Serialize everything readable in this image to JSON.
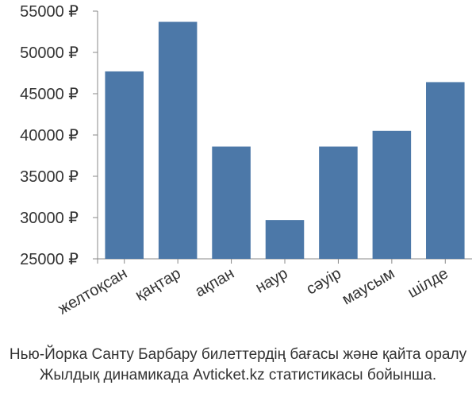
{
  "chart_data": {
    "type": "bar",
    "categories": [
      "желтоқсан",
      "қаңтар",
      "ақпан",
      "наур",
      "сәуір",
      "маусым",
      "шілде"
    ],
    "values": [
      47700,
      53700,
      38600,
      29700,
      38600,
      40500,
      46400
    ],
    "ylim": [
      25000,
      55000
    ],
    "yticks": [
      25000,
      30000,
      35000,
      40000,
      45000,
      50000,
      55000
    ],
    "ytick_labels": [
      "25000 ₽",
      "30000 ₽",
      "35000 ₽",
      "40000 ₽",
      "45000 ₽",
      "50000 ₽",
      "55000 ₽"
    ],
    "bar_color": "#4c78a8",
    "grid": false
  },
  "caption": {
    "line1": "Нью-Йорка Санту Барбару билеттердің бағасы және қайта оралу",
    "line2": "Жылдық динамикада Avticket.kz статистикасы бойынша."
  }
}
